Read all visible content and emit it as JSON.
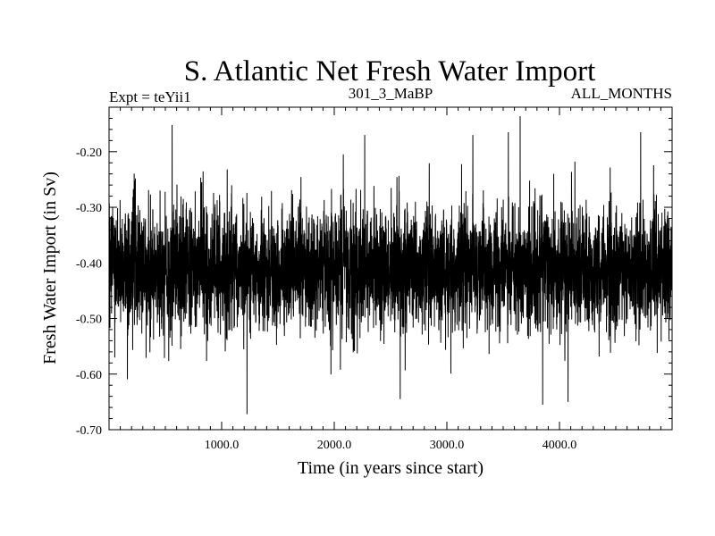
{
  "chart_data": {
    "type": "line",
    "title": "S. Atlantic Net Fresh Water Import",
    "subtitle_left": "Expt = teYii1",
    "subtitle_center": "301_3_MaBP",
    "subtitle_right": "ALL_MONTHS",
    "xlabel": "Time (in years since start)",
    "ylabel": "Fresh Water Import (in Sv)",
    "xlim": [
      0,
      5000
    ],
    "ylim": [
      -0.7,
      -0.12
    ],
    "x_ticks": [
      1000,
      2000,
      3000,
      4000
    ],
    "x_tick_labels": [
      "1000.0",
      "2000.0",
      "3000.0",
      "4000.0"
    ],
    "y_ticks": [
      -0.2,
      -0.3,
      -0.4,
      -0.5,
      -0.6,
      -0.7
    ],
    "y_tick_labels": [
      "-0.20",
      "-0.30",
      "-0.40",
      "-0.50",
      "-0.60",
      "-0.70"
    ],
    "series": [
      {
        "name": "Net fresh water import",
        "color": "#000000",
        "summary": {
          "n_points": 5000,
          "mean": -0.41,
          "typical_min": -0.52,
          "typical_max": -0.3,
          "min": -0.672,
          "max": -0.136
        },
        "notable_points": [
          {
            "x": 560,
            "y": -0.152
          },
          {
            "x": 1225,
            "y": -0.672
          },
          {
            "x": 2080,
            "y": -0.205
          },
          {
            "x": 2270,
            "y": -0.17
          },
          {
            "x": 2585,
            "y": -0.645
          },
          {
            "x": 3230,
            "y": -0.17
          },
          {
            "x": 3545,
            "y": -0.165
          },
          {
            "x": 3650,
            "y": -0.136
          },
          {
            "x": 3850,
            "y": -0.655
          },
          {
            "x": 4075,
            "y": -0.65
          },
          {
            "x": 4720,
            "y": -0.165
          }
        ]
      }
    ]
  }
}
